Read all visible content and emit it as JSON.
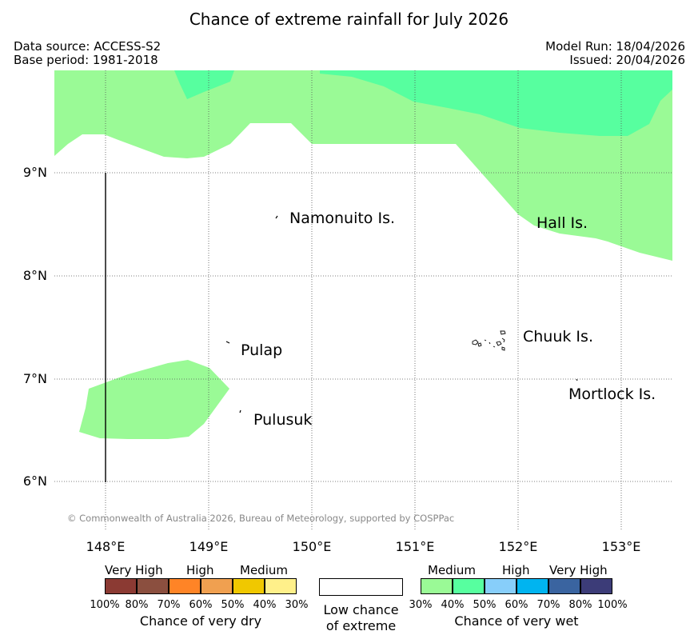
{
  "header": {
    "title": "Chance of extreme rainfall for July 2026",
    "data_source": "Data source: ACCESS-S2",
    "base_period": "Base period: 1981-2018",
    "model_run": "Model Run: 18/04/2026",
    "issued": "Issued: 20/04/2026"
  },
  "map": {
    "lat_labels": [
      "9°N",
      "8°N",
      "7°N",
      "6°N"
    ],
    "lon_labels": [
      "148°E",
      "149°E",
      "150°E",
      "151°E",
      "152°E",
      "153°E"
    ],
    "places": {
      "namonuito": "Namonuito Is.",
      "hall": "Hall Is.",
      "pulap": "Pulap",
      "chuuk": "Chuuk Is.",
      "mortlock": "Mortlock Is.",
      "pulusuk": "Pulusuk"
    },
    "copyright": "© Commonwealth of Australia 2026, Bureau of Meteorology, supported by COSPPac",
    "colors": {
      "wet_30_40": "#9afa96",
      "wet_40_50": "#57ff9f"
    }
  },
  "legend": {
    "dry": {
      "headers": [
        "Very High",
        "High",
        "Medium"
      ],
      "colors": [
        "#8b3a33",
        "#8b4f3f",
        "#ff8426",
        "#f0a050",
        "#f0c800",
        "#fff08a"
      ],
      "ticks": [
        "100%",
        "80%",
        "70%",
        "60%",
        "50%",
        "40%",
        "30%"
      ],
      "caption": "Chance of very dry"
    },
    "neutral": {
      "caption_line1": "Low chance",
      "caption_line2": "of extreme"
    },
    "wet": {
      "headers": [
        "Medium",
        "High",
        "Very High"
      ],
      "colors": [
        "#9afa96",
        "#57ff9f",
        "#87cefa",
        "#00b4f0",
        "#3a64a0",
        "#3c3c78"
      ],
      "ticks": [
        "30%",
        "40%",
        "50%",
        "60%",
        "70%",
        "80%",
        "100%"
      ],
      "caption": "Chance of very wet"
    }
  }
}
